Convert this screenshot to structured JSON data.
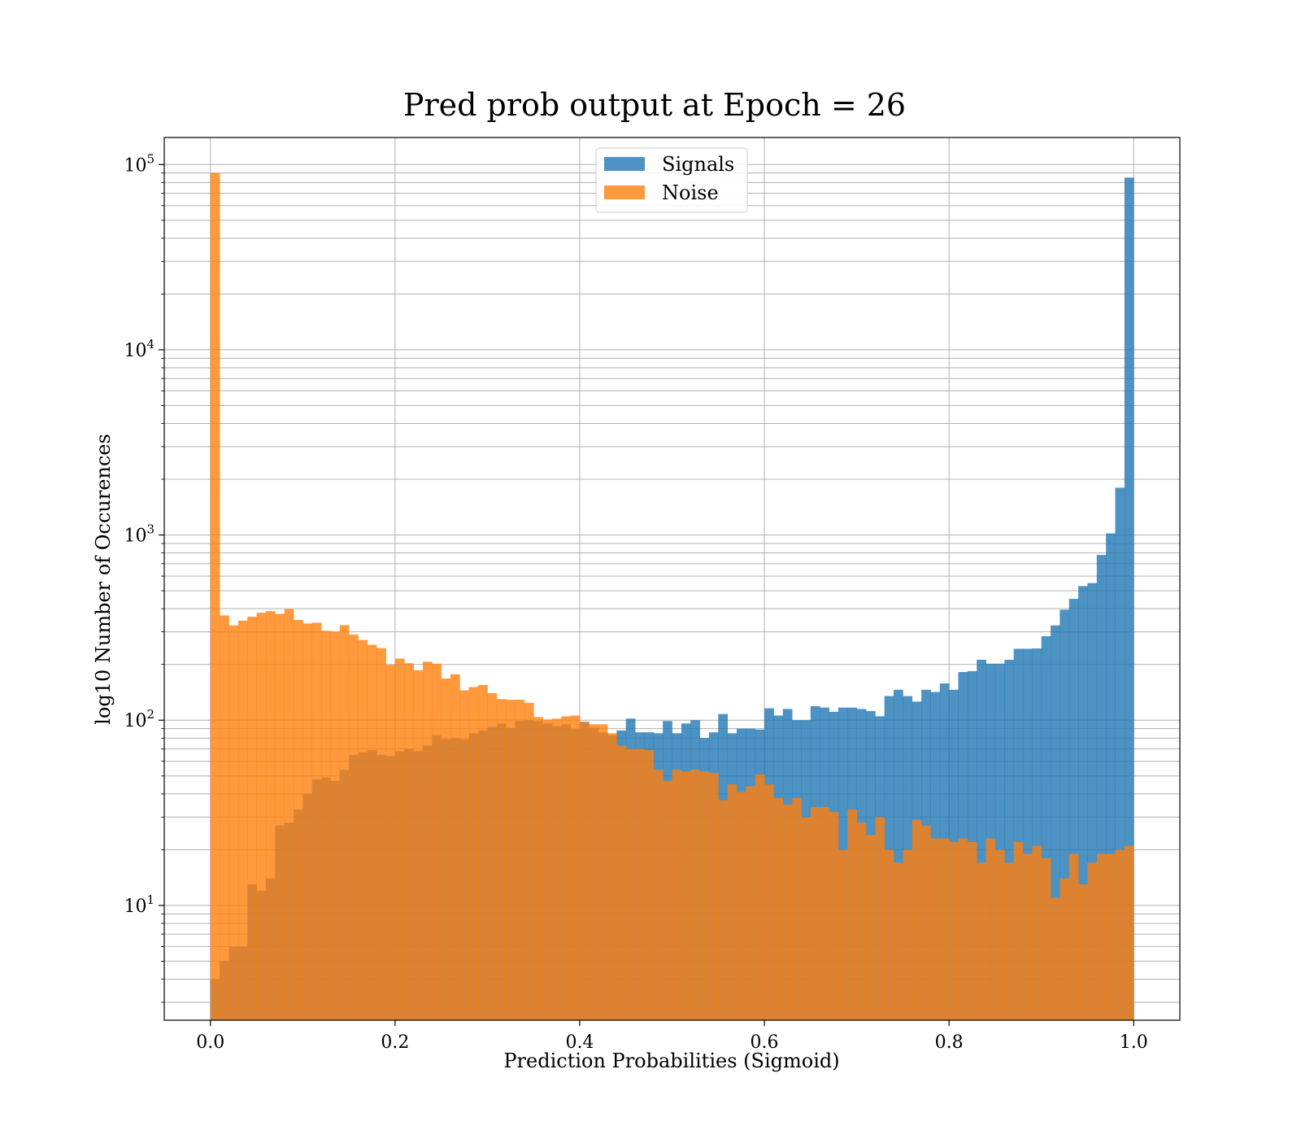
{
  "chart_data": {
    "type": "bar",
    "title": "Pred prob output at Epoch = 26",
    "xlabel": "Prediction Probabilities (Sigmoid)",
    "ylabel": "log10 Number of Occurences",
    "xlim": [
      -0.05,
      1.05
    ],
    "ylim": [
      2.4,
      140000
    ],
    "yscale": "log",
    "grid": true,
    "legend_position": "upper-center",
    "x_ticks": [
      {
        "value": 0.0,
        "label": "0.0"
      },
      {
        "value": 0.2,
        "label": "0.2"
      },
      {
        "value": 0.4,
        "label": "0.4"
      },
      {
        "value": 0.6,
        "label": "0.6"
      },
      {
        "value": 0.8,
        "label": "0.8"
      },
      {
        "value": 1.0,
        "label": "1.0"
      }
    ],
    "y_ticks": [
      {
        "value": 10,
        "base": "10",
        "exp": "1"
      },
      {
        "value": 100,
        "base": "10",
        "exp": "2"
      },
      {
        "value": 1000,
        "base": "10",
        "exp": "3"
      },
      {
        "value": 10000,
        "base": "10",
        "exp": "4"
      },
      {
        "value": 100000,
        "base": "10",
        "exp": "5"
      }
    ],
    "bins": {
      "start": 0.0,
      "width": 0.01,
      "count": 100
    },
    "series": [
      {
        "name": "Signals",
        "color": "#1f77b4",
        "alpha": 0.8,
        "values": [
          4,
          5,
          6,
          6,
          13,
          12,
          14,
          27,
          28,
          33,
          40,
          48,
          49,
          47,
          54,
          65,
          67,
          69,
          65,
          64,
          68,
          70,
          68,
          73,
          83,
          79,
          80,
          79,
          85,
          88,
          92,
          96,
          91,
          99,
          100,
          99,
          96,
          93,
          95,
          90,
          98,
          91,
          86,
          83,
          88,
          102,
          86,
          86,
          85,
          99,
          85,
          96,
          100,
          80,
          86,
          108,
          85,
          90,
          90,
          89,
          116,
          106,
          115,
          100,
          100,
          119,
          117,
          111,
          117,
          117,
          115,
          112,
          105,
          135,
          146,
          135,
          126,
          146,
          142,
          158,
          146,
          182,
          184,
          212,
          202,
          202,
          212,
          243,
          243,
          244,
          284,
          325,
          395,
          452,
          530,
          550,
          780,
          1020,
          1800,
          85000
        ]
      },
      {
        "name": "Noise",
        "color": "#ff7f0e",
        "alpha": 0.8,
        "values": [
          90000,
          368,
          325,
          345,
          362,
          380,
          388,
          375,
          398,
          348,
          333,
          336,
          304,
          301,
          326,
          290,
          271,
          255,
          245,
          199,
          215,
          203,
          186,
          207,
          202,
          168,
          177,
          145,
          151,
          155,
          140,
          130,
          129,
          129,
          124,
          104,
          101,
          102,
          105,
          106,
          98,
          95,
          95,
          85,
          73,
          70,
          70,
          69,
          54,
          47,
          54,
          53,
          54,
          53,
          52,
          37,
          45,
          41,
          44,
          51,
          45,
          38,
          35,
          38,
          30,
          34,
          34,
          32,
          20,
          33,
          28,
          24,
          30,
          20,
          17,
          20,
          29,
          27,
          23,
          23,
          22,
          23,
          22,
          17,
          23,
          20,
          17,
          22,
          19,
          21,
          18,
          11,
          14,
          19,
          13,
          17,
          19,
          19,
          20,
          21
        ]
      }
    ]
  }
}
